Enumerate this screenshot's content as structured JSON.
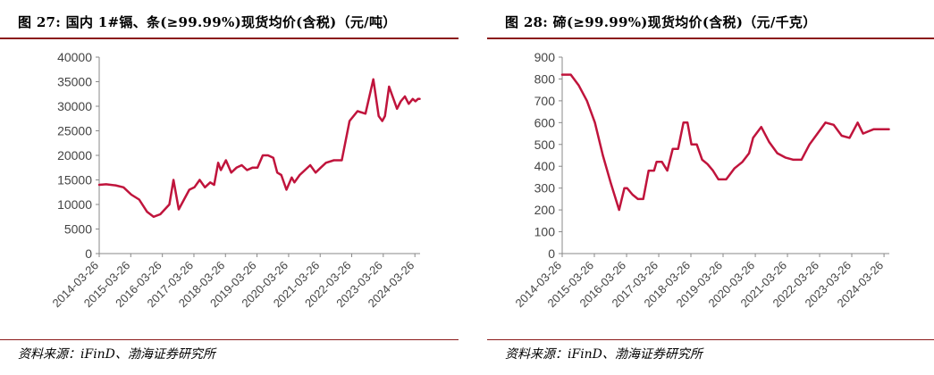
{
  "left": {
    "title": "图 27: 国内 1#镉、条(≥99.99%)现货均价(含税)（元/吨）",
    "source": "资料来源：iFinD、渤海证券研究所"
  },
  "right": {
    "title": "图 28: 碲(≥99.99%)现货均价(含税)（元/千克）",
    "source": "资料来源：iFinD、渤海证券研究所"
  },
  "colors": {
    "line": "#c0143c",
    "rule": "#8b1a1a",
    "axis": "#888888"
  },
  "chart_data": [
    {
      "type": "line",
      "title": "",
      "xlabel": "",
      "ylabel": "",
      "ylim": [
        0,
        40000
      ],
      "yticks": [
        0,
        5000,
        10000,
        15000,
        20000,
        25000,
        30000,
        35000,
        40000
      ],
      "xticks": [
        "2014-03-26",
        "2015-03-26",
        "2016-03-26",
        "2017-03-26",
        "2018-03-26",
        "2019-03-26",
        "2020-03-26",
        "2021-03-26",
        "2022-03-26",
        "2023-03-26",
        "2024-03-26"
      ],
      "grid": false,
      "x": [
        "2014-03-26",
        "2014-06-15",
        "2014-10-01",
        "2015-01-01",
        "2015-04-01",
        "2015-07-01",
        "2015-10-01",
        "2015-12-15",
        "2016-03-01",
        "2016-06-15",
        "2016-08-01",
        "2016-10-01",
        "2016-12-01",
        "2017-02-01",
        "2017-04-01",
        "2017-06-01",
        "2017-08-01",
        "2017-10-01",
        "2017-11-15",
        "2018-01-01",
        "2018-02-01",
        "2018-04-01",
        "2018-06-01",
        "2018-08-01",
        "2018-10-01",
        "2018-12-01",
        "2019-02-01",
        "2019-04-01",
        "2019-06-01",
        "2019-08-01",
        "2019-10-01",
        "2019-11-15",
        "2020-01-01",
        "2020-03-01",
        "2020-05-01",
        "2020-06-01",
        "2020-08-01",
        "2020-10-01",
        "2020-12-01",
        "2021-02-01",
        "2021-04-01",
        "2021-06-01",
        "2021-09-01",
        "2021-12-01",
        "2022-03-01",
        "2022-06-01",
        "2022-09-01",
        "2022-12-01",
        "2023-02-01",
        "2023-03-15",
        "2023-04-15",
        "2023-06-01",
        "2023-09-01",
        "2023-10-15",
        "2023-12-01",
        "2024-01-15",
        "2024-03-01",
        "2024-04-01",
        "2024-05-01",
        "2024-05-20"
      ],
      "values": [
        14000,
        14100,
        13900,
        13500,
        12000,
        11000,
        8500,
        7500,
        8000,
        10000,
        15000,
        9000,
        11000,
        13000,
        13500,
        15000,
        13500,
        14500,
        14000,
        18500,
        17000,
        19000,
        16500,
        17500,
        18000,
        17000,
        17500,
        17500,
        20000,
        20000,
        19500,
        16500,
        16000,
        13000,
        15500,
        14500,
        16000,
        17000,
        18000,
        16500,
        17500,
        18500,
        19000,
        19000,
        27000,
        29000,
        28500,
        35500,
        28000,
        27000,
        28000,
        34000,
        29500,
        31000,
        32000,
        30500,
        31500,
        31000,
        31500,
        31500
      ]
    },
    {
      "type": "line",
      "title": "",
      "xlabel": "",
      "ylabel": "",
      "ylim": [
        0,
        900
      ],
      "yticks": [
        0,
        100,
        200,
        300,
        400,
        500,
        600,
        700,
        800,
        900
      ],
      "xticks": [
        "2014-03-26",
        "2015-03-26",
        "2016-03-26",
        "2017-03-26",
        "2018-03-26",
        "2019-03-26",
        "2020-03-26",
        "2021-03-26",
        "2022-03-26",
        "2023-03-26",
        "2024-03-26"
      ],
      "grid": false,
      "x": [
        "2014-03-26",
        "2014-07-01",
        "2014-10-01",
        "2015-01-01",
        "2015-04-01",
        "2015-07-01",
        "2015-10-01",
        "2016-01-01",
        "2016-03-01",
        "2016-04-01",
        "2016-06-01",
        "2016-08-01",
        "2016-10-01",
        "2016-12-01",
        "2017-02-01",
        "2017-03-01",
        "2017-05-01",
        "2017-07-01",
        "2017-09-01",
        "2017-11-01",
        "2018-01-01",
        "2018-02-15",
        "2018-04-01",
        "2018-06-01",
        "2018-08-01",
        "2018-10-01",
        "2018-12-01",
        "2019-02-01",
        "2019-05-01",
        "2019-08-01",
        "2019-11-01",
        "2020-01-15",
        "2020-03-01",
        "2020-06-01",
        "2020-09-01",
        "2020-12-01",
        "2021-03-01",
        "2021-06-01",
        "2021-09-01",
        "2021-12-01",
        "2022-03-01",
        "2022-06-01",
        "2022-09-01",
        "2022-12-01",
        "2023-03-01",
        "2023-06-01",
        "2023-08-01",
        "2023-10-01",
        "2023-12-01",
        "2024-01-01",
        "2024-02-01",
        "2024-03-01",
        "2024-04-01",
        "2024-05-01",
        "2024-05-20"
      ],
      "values": [
        820,
        820,
        770,
        700,
        600,
        450,
        320,
        200,
        300,
        300,
        270,
        250,
        250,
        380,
        380,
        420,
        420,
        380,
        480,
        480,
        600,
        600,
        500,
        500,
        430,
        410,
        380,
        340,
        340,
        390,
        420,
        460,
        530,
        580,
        510,
        460,
        440,
        430,
        430,
        500,
        550,
        600,
        590,
        540,
        530,
        600,
        550,
        560,
        570,
        570,
        570,
        570,
        570,
        570,
        570
      ]
    }
  ]
}
